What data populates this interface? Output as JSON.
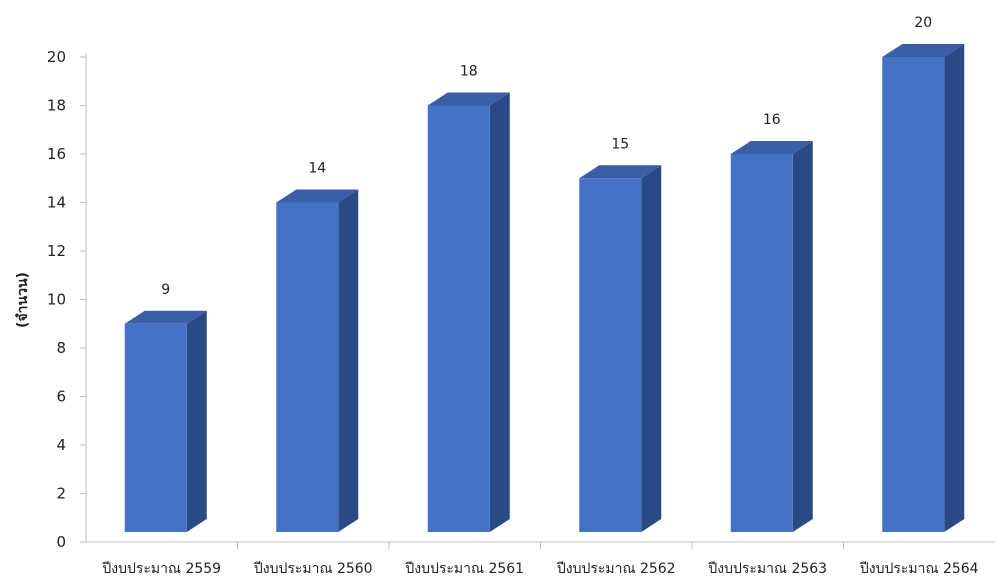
{
  "chart_data": {
    "type": "bar",
    "categories": [
      "ปีงบประมาณ 2559",
      "ปีงบประมาณ 2560",
      "ปีงบประมาณ 2561",
      "ปีงบประมาณ 2562",
      "ปีงบประมาณ 2563",
      "ปีงบประมาณ 2564"
    ],
    "values": [
      9,
      14,
      18,
      15,
      16,
      20
    ],
    "data_labels": [
      "9",
      "14",
      "18",
      "15",
      "16",
      "20"
    ],
    "ylabel": "(จำนวน)",
    "xlabel": "",
    "ylim": [
      0,
      20
    ],
    "yticks": [
      "0",
      "2",
      "4",
      "6",
      "8",
      "10",
      "12",
      "14",
      "16",
      "18",
      "20"
    ],
    "grid": false,
    "style": "3d-bar",
    "colors": {
      "front": "#4472c4",
      "side": "#2a4a86",
      "top": "#3a5fa6",
      "axis": "#bfbfbf"
    }
  }
}
